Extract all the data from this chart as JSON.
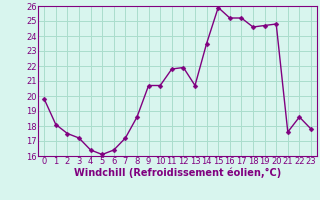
{
  "x": [
    0,
    1,
    2,
    3,
    4,
    5,
    6,
    7,
    8,
    9,
    10,
    11,
    12,
    13,
    14,
    15,
    16,
    17,
    18,
    19,
    20,
    21,
    22,
    23
  ],
  "y": [
    19.8,
    18.1,
    17.5,
    17.2,
    16.4,
    16.1,
    16.4,
    17.2,
    18.6,
    20.7,
    20.7,
    21.8,
    21.9,
    20.7,
    23.5,
    25.9,
    25.2,
    25.2,
    24.6,
    24.7,
    24.8,
    17.6,
    18.6,
    17.8
  ],
  "line_color": "#800080",
  "marker": "D",
  "marker_size": 2.5,
  "linewidth": 1.0,
  "xlabel": "Windchill (Refroidissement éolien,°C)",
  "xlabel_fontsize": 7.0,
  "xlim": [
    -0.5,
    23.5
  ],
  "ylim": [
    16,
    26
  ],
  "yticks": [
    16,
    17,
    18,
    19,
    20,
    21,
    22,
    23,
    24,
    25,
    26
  ],
  "xticks": [
    0,
    1,
    2,
    3,
    4,
    5,
    6,
    7,
    8,
    9,
    10,
    11,
    12,
    13,
    14,
    15,
    16,
    17,
    18,
    19,
    20,
    21,
    22,
    23
  ],
  "grid_color": "#aaddcc",
  "background_color": "#d8f5ee",
  "tick_fontsize": 6.0,
  "title": ""
}
